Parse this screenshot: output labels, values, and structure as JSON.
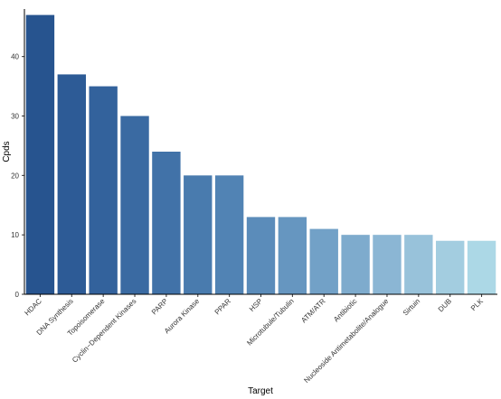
{
  "chart_data": {
    "type": "bar",
    "x_label": "Target",
    "y_label": "Cpds",
    "categories": [
      "HDAC",
      "DNA Synthesis",
      "Topoisomerase",
      "Cyclin−Dependent Kinases",
      "PARP",
      "Aurora Kinase",
      "PPAR",
      "HSP",
      "Microtubule/Tubulin",
      "ATM/ATR",
      "Antibiotic",
      "Nucleoside Antimetabolite/Analogue",
      "Sirtuin",
      "DUB",
      "PLK"
    ],
    "values": [
      47,
      37,
      35,
      30,
      24,
      20,
      20,
      13,
      13,
      11,
      10,
      10,
      10,
      9,
      9
    ],
    "colors": [
      "#27548f",
      "#2d5b96",
      "#33629c",
      "#3a6aa2",
      "#4172a8",
      "#497bae",
      "#5183b4",
      "#5b8cba",
      "#6696c0",
      "#72a1c7",
      "#7eabcd",
      "#8bb6d4",
      "#98c2da",
      "#a3cde0",
      "#acd8e6"
    ],
    "ylim": [
      0,
      48
    ],
    "yticks": [
      0,
      10,
      20,
      30,
      40
    ],
    "grid": false
  }
}
